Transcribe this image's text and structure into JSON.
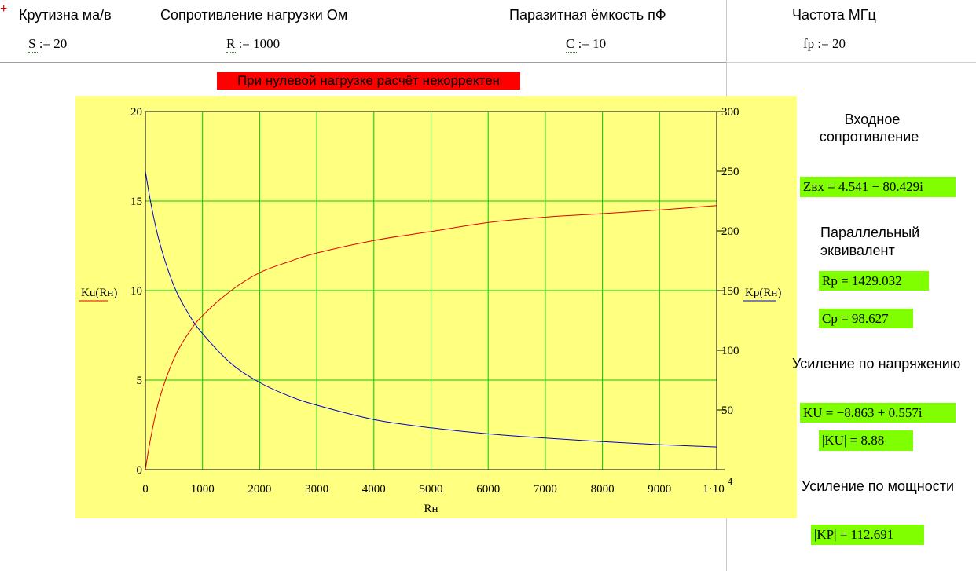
{
  "header": {
    "col1_label": "Крутизна ма/в",
    "col2_label": "Сопротивление нагрузки Ом",
    "col3_label": "Паразитная ёмкость пФ",
    "col4_label": "Частота МГц",
    "s_def": "S := 20",
    "r_def": "R := 1000",
    "c_def": "C := 10",
    "fp_def": "fp := 20"
  },
  "warning": "При нулевой нагрузке расчёт некорректен",
  "results": {
    "zin_title_1": "Входное",
    "zin_title_2": "сопротивление",
    "zin_value": "Zвх = 4.541 − 80.429i",
    "par_title_1": "Параллельный",
    "par_title_2": "эквивалент",
    "rp_value": "Rp = 1429.032",
    "cp_value": "Cp = 98.627",
    "ku_title": "Усиление по напряжению",
    "ku_value": "KU = −8.863 + 0.557i",
    "ku_abs_value": "|KU| = 8.88",
    "kp_title": "Усиление по мощности",
    "kp_abs_value": "|KP| = 112.691"
  },
  "chart_data": {
    "type": "line",
    "xlabel": "Rн",
    "ylabel_left": "Ku(Rн)",
    "ylabel_right": "Kp(Rн)",
    "xlim": [
      0,
      10000
    ],
    "ylim_left": [
      0,
      20
    ],
    "ylim_right": [
      0,
      300
    ],
    "x_ticks": [
      "0",
      "1000",
      "2000",
      "3000",
      "4000",
      "5000",
      "6000",
      "7000",
      "8000",
      "9000",
      "1·10"
    ],
    "x_last_exponent": "4",
    "y_left_ticks": [
      "0",
      "5",
      "10",
      "15",
      "20"
    ],
    "y_right_ticks": [
      "50",
      "100",
      "150",
      "200",
      "250",
      "300"
    ],
    "grid": true,
    "colors": {
      "ku": "#e00000",
      "kp": "#0000cc",
      "grid": "#00cc00",
      "background": "#ffff80"
    },
    "series": [
      {
        "name": "Ku(Rн)",
        "axis": "left",
        "x": [
          0,
          100,
          250,
          500,
          750,
          1000,
          1500,
          2000,
          2500,
          3000,
          4000,
          5000,
          6000,
          7000,
          8000,
          9000,
          10000
        ],
        "y": [
          0,
          1.9,
          4.0,
          6.2,
          7.6,
          8.6,
          10.0,
          11.0,
          11.6,
          12.1,
          12.8,
          13.3,
          13.8,
          14.1,
          14.3,
          14.5,
          14.75
        ]
      },
      {
        "name": "Kp(Rн)",
        "axis": "right",
        "x": [
          0,
          100,
          250,
          500,
          750,
          1000,
          1500,
          2000,
          2500,
          3000,
          4000,
          5000,
          6000,
          7000,
          8000,
          9000,
          10000
        ],
        "y": [
          250,
          222,
          190,
          154,
          131,
          114,
          89,
          73,
          62,
          54,
          42,
          35,
          30,
          26.5,
          23.5,
          21,
          19
        ]
      }
    ]
  }
}
